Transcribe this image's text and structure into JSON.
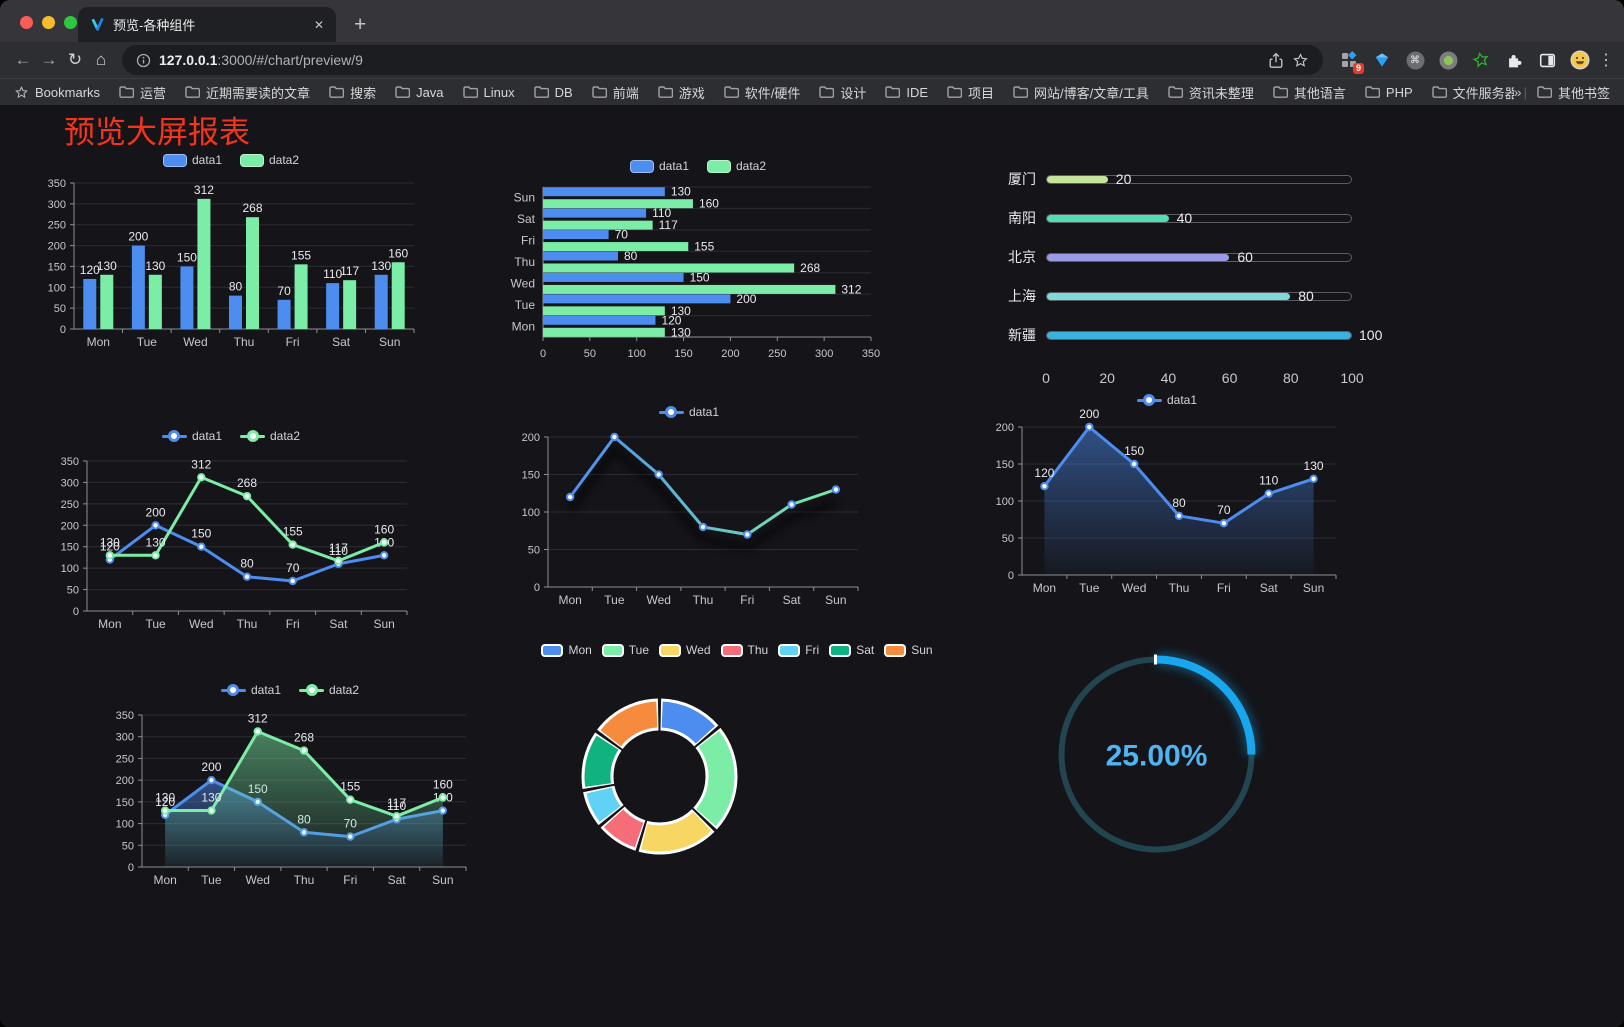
{
  "browser": {
    "tab_title": "预览-各种组件",
    "close_glyph": "✕",
    "new_tab_glyph": "+",
    "back_glyph": "←",
    "forward_glyph": "→",
    "reload_glyph": "↻",
    "home_glyph": "⌂",
    "url_host": "127.0.0.1",
    "url_rest": ":3000/#/chart/preview/9",
    "bookmarks_root": "Bookmarks",
    "bookmark_folders": [
      "运营",
      "近期需要读的文章",
      "搜索",
      "Java",
      "Linux",
      "DB",
      "前端",
      "游戏",
      "软件/硬件",
      "设计",
      "IDE",
      "项目",
      "网站/博客/文章/工具",
      "资讯未整理",
      "其他语言",
      "PHP",
      "文件服务器"
    ],
    "overflow_glyph": "»",
    "other_bookmarks": "其他书签",
    "extension_badge": "9",
    "command_glyph": "⌘",
    "menu_glyph": "⋮"
  },
  "page": {
    "title": "预览大屏报表",
    "title_color": "#f5341d"
  },
  "colors": {
    "data1": "#4d8df0",
    "data2": "#7ceda6",
    "axis": "#8e8f94",
    "grid": "#2c2d34",
    "tick_text": "#c7c8cc",
    "label_text": "#e9eaee"
  },
  "chart_data": [
    {
      "type": "bar",
      "categories": [
        "Mon",
        "Tue",
        "Wed",
        "Thu",
        "Fri",
        "Sat",
        "Sun"
      ],
      "series": [
        {
          "name": "data1",
          "color": "#4d8df0",
          "values": [
            120,
            200,
            150,
            80,
            70,
            110,
            130
          ]
        },
        {
          "name": "data2",
          "color": "#7ceda6",
          "values": [
            130,
            130,
            312,
            268,
            155,
            117,
            160
          ]
        }
      ],
      "ylim": [
        0,
        350
      ],
      "yticks": [
        0,
        50,
        100,
        150,
        200,
        250,
        300,
        350
      ],
      "labels": true,
      "legend_position": "top",
      "grid": true
    },
    {
      "type": "hbar",
      "categories": [
        "Mon",
        "Tue",
        "Wed",
        "Thu",
        "Fri",
        "Sat",
        "Sun"
      ],
      "category_axis_top_to_bottom": [
        "Sun",
        "Sat",
        "Fri",
        "Thu",
        "Wed",
        "Tue",
        "Mon"
      ],
      "series": [
        {
          "name": "data1",
          "color": "#4d8df0",
          "values": [
            120,
            200,
            150,
            80,
            70,
            110,
            130
          ]
        },
        {
          "name": "data2",
          "color": "#7ceda6",
          "values": [
            130,
            130,
            312,
            268,
            155,
            117,
            160
          ]
        }
      ],
      "xlim": [
        0,
        350
      ],
      "xticks": [
        0,
        50,
        100,
        150,
        200,
        250,
        300,
        350
      ],
      "labels": true,
      "legend_position": "top",
      "grid": true
    },
    {
      "type": "progress",
      "items": [
        {
          "label": "厦门",
          "value": 20,
          "color": "#c5e59a"
        },
        {
          "label": "南阳",
          "value": 40,
          "color": "#52dcb1"
        },
        {
          "label": "北京",
          "value": 60,
          "color": "#9a9ae6"
        },
        {
          "label": "上海",
          "value": 80,
          "color": "#7fd8d9"
        },
        {
          "label": "新疆",
          "value": 100,
          "color": "#3cb1e0"
        }
      ],
      "max": 100,
      "axis_ticks": [
        0,
        20,
        40,
        60,
        80,
        100
      ]
    },
    {
      "type": "line",
      "categories": [
        "Mon",
        "Tue",
        "Wed",
        "Thu",
        "Fri",
        "Sat",
        "Sun"
      ],
      "series": [
        {
          "name": "data1",
          "color": "#4d8df0",
          "values": [
            120,
            200,
            150,
            80,
            70,
            110,
            130
          ]
        },
        {
          "name": "data2",
          "color": "#7ceda6",
          "values": [
            130,
            130,
            312,
            268,
            155,
            117,
            160
          ]
        }
      ],
      "ylim": [
        0,
        350
      ],
      "yticks": [
        0,
        50,
        100,
        150,
        200,
        250,
        300,
        350
      ],
      "labels": true,
      "marker": "circle",
      "legend_position": "top",
      "grid": true
    },
    {
      "type": "line",
      "categories": [
        "Mon",
        "Tue",
        "Wed",
        "Thu",
        "Fri",
        "Sat",
        "Sun"
      ],
      "series": [
        {
          "name": "data1",
          "color": "#4d8df0",
          "gradient": [
            "#4d8df0",
            "#7ceda6"
          ],
          "values": [
            120,
            200,
            150,
            80,
            70,
            110,
            130
          ]
        }
      ],
      "ylim": [
        0,
        200
      ],
      "yticks": [
        0,
        50,
        100,
        150,
        200
      ],
      "labels": false,
      "shadow": true,
      "marker": "circle",
      "legend_position": "top",
      "grid": true
    },
    {
      "type": "line",
      "categories": [
        "Mon",
        "Tue",
        "Wed",
        "Thu",
        "Fri",
        "Sat",
        "Sun"
      ],
      "series": [
        {
          "name": "data1",
          "color": "#4d8df0",
          "area": true,
          "values": [
            120,
            200,
            150,
            80,
            70,
            110,
            130
          ]
        }
      ],
      "ylim": [
        0,
        200
      ],
      "yticks": [
        0,
        50,
        100,
        150,
        200
      ],
      "labels": true,
      "marker": "circle",
      "legend_position": "top",
      "grid": true
    },
    {
      "type": "line",
      "categories": [
        "Mon",
        "Tue",
        "Wed",
        "Thu",
        "Fri",
        "Sat",
        "Sun"
      ],
      "series": [
        {
          "name": "data1",
          "color": "#4d8df0",
          "area": true,
          "values": [
            120,
            200,
            150,
            80,
            70,
            110,
            130
          ]
        },
        {
          "name": "data2",
          "color": "#7ceda6",
          "area": true,
          "values": [
            130,
            130,
            312,
            268,
            155,
            117,
            160
          ]
        }
      ],
      "ylim": [
        0,
        350
      ],
      "yticks": [
        0,
        50,
        100,
        150,
        200,
        250,
        300,
        350
      ],
      "labels": true,
      "marker": "circle",
      "legend_position": "top",
      "grid": true
    },
    {
      "type": "donut",
      "categories": [
        "Mon",
        "Tue",
        "Wed",
        "Thu",
        "Fri",
        "Sat",
        "Sun"
      ],
      "values": [
        120,
        200,
        150,
        80,
        70,
        110,
        130
      ],
      "colors": [
        "#4d8df0",
        "#7ceda6",
        "#f7d664",
        "#f66d7a",
        "#5fd2f5",
        "#10b37f",
        "#f68b3e"
      ],
      "legend_position": "top"
    },
    {
      "type": "gauge",
      "value": 25,
      "display": "25.00%",
      "color": "#18a7ee",
      "track_color": "#23454f",
      "text_color": "#4fb5f2"
    }
  ]
}
